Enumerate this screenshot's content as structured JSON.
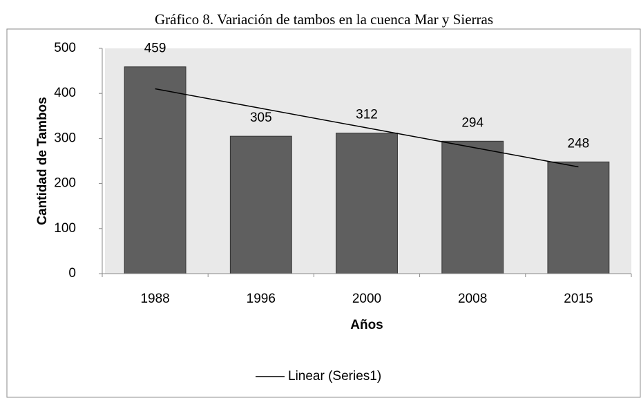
{
  "chart_data": {
    "type": "bar",
    "title": "Gráfico 8. Variación de tambos en la cuenca Mar y Sierras",
    "xlabel": "Años",
    "ylabel": "Cantidad de Tambos",
    "categories": [
      "1988",
      "1996",
      "2000",
      "2008",
      "2015"
    ],
    "values": [
      459,
      305,
      312,
      294,
      248
    ],
    "color": "#5f5f5f",
    "trendline": {
      "name": "Linear (Series1)",
      "color": "#000000",
      "values": [
        410.2,
        366.9,
        323.6,
        280.3,
        237
      ]
    },
    "ylim": [
      0,
      500
    ],
    "yticks": [
      0,
      100,
      200,
      300,
      400,
      500
    ],
    "grid": false,
    "legend": "bottom"
  }
}
